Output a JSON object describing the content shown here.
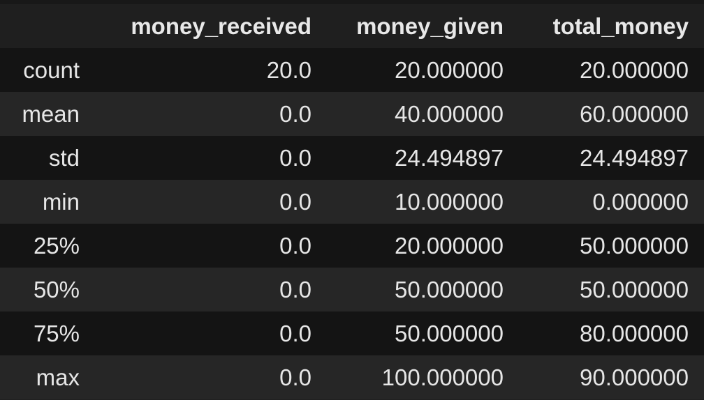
{
  "table": {
    "columns": [
      "money_received",
      "money_given",
      "total_money"
    ],
    "rows": [
      {
        "label": "count",
        "values": [
          "20.0",
          "20.000000",
          "20.000000"
        ]
      },
      {
        "label": "mean",
        "values": [
          "0.0",
          "40.000000",
          "60.000000"
        ]
      },
      {
        "label": "std",
        "values": [
          "0.0",
          "24.494897",
          "24.494897"
        ]
      },
      {
        "label": "min",
        "values": [
          "0.0",
          "10.000000",
          "0.000000"
        ]
      },
      {
        "label": "25%",
        "values": [
          "0.0",
          "20.000000",
          "50.000000"
        ]
      },
      {
        "label": "50%",
        "values": [
          "0.0",
          "50.000000",
          "50.000000"
        ]
      },
      {
        "label": "75%",
        "values": [
          "0.0",
          "50.000000",
          "80.000000"
        ]
      },
      {
        "label": "max",
        "values": [
          "0.0",
          "100.000000",
          "90.000000"
        ]
      }
    ]
  },
  "colors": {
    "background": "#1f1f1f",
    "row_dark": "#141414",
    "row_light": "#262626",
    "text": "#e6e6e6"
  }
}
